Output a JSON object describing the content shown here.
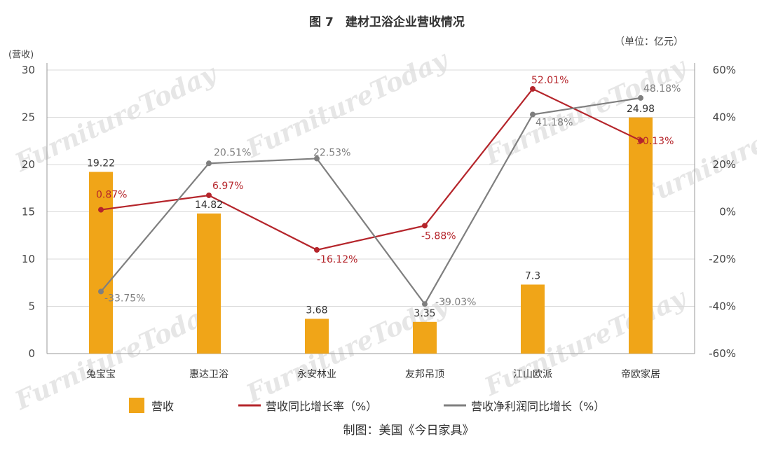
{
  "unit_label": "（单位：亿元）",
  "left_axis_label": "(营收)",
  "watermark": "FurnitureToday",
  "credit": "制图：美国《今日家具》",
  "chart_data": {
    "type": "bar",
    "title": "图 7　建材卫浴企业营收情况",
    "categories": [
      "兔宝宝",
      "惠达卫浴",
      "永安林业",
      "友邦吊顶",
      "江山欧派",
      "帝欧家居"
    ],
    "ylim": [
      0,
      30
    ],
    "yticks": [
      "0",
      "5",
      "10",
      "15",
      "20",
      "25",
      "30"
    ],
    "y2lim": [
      -60,
      60
    ],
    "y2ticks": [
      "-60%",
      "-40%",
      "-20%",
      "0%",
      "20%",
      "40%",
      "60%"
    ],
    "grid": true,
    "legend_position": "bottom",
    "series": [
      {
        "name": "营收",
        "kind": "bar",
        "axis": "left",
        "color": "#f0a518",
        "values": [
          19.22,
          14.82,
          3.68,
          3.35,
          7.3,
          24.98
        ],
        "labels": [
          "19.22",
          "14.82",
          "3.68",
          "3.35",
          "7.3",
          "24.98"
        ]
      },
      {
        "name": "营收同比增长率（%）",
        "kind": "line",
        "axis": "right",
        "color": "#b5252b",
        "values": [
          0.87,
          6.97,
          -16.12,
          -5.88,
          52.01,
          30.13
        ],
        "labels": [
          "0.87%",
          "6.97%",
          "-16.12%",
          "-5.88%",
          "52.01%",
          "30.13%"
        ]
      },
      {
        "name": "营收净利润同比增长（%）",
        "kind": "line",
        "axis": "right",
        "color": "#7f7f7f",
        "values": [
          -33.75,
          20.51,
          22.53,
          -39.03,
          41.18,
          48.18
        ],
        "labels": [
          "-33.75%",
          "20.51%",
          "22.53%",
          "-39.03%",
          "41.18%",
          "48.18%"
        ]
      }
    ]
  }
}
